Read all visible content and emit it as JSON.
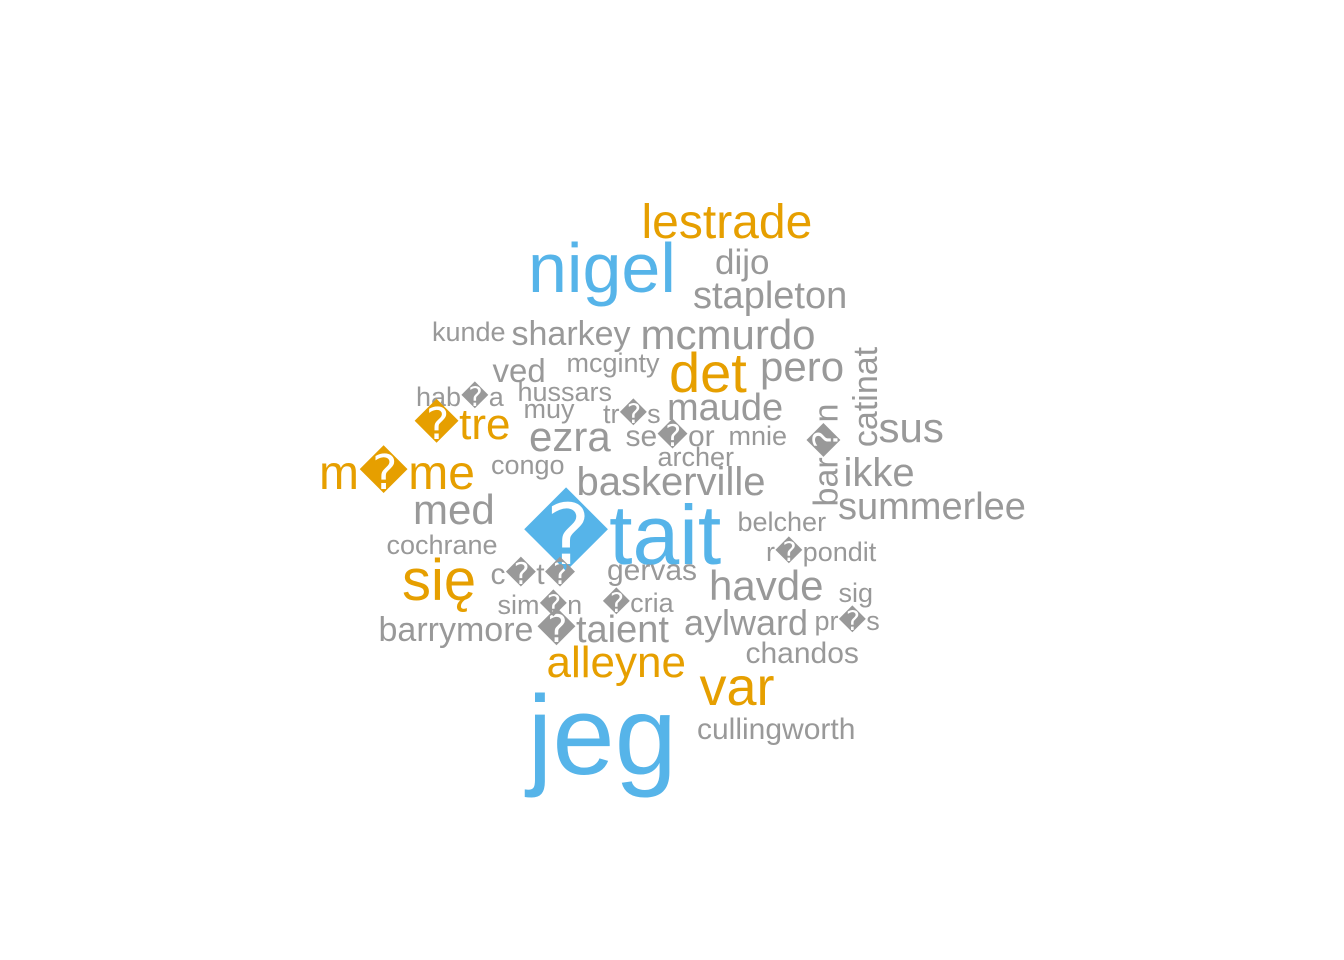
{
  "colors": {
    "blue": "#56B4E9",
    "orange": "#E69F00",
    "gray": "#999999"
  },
  "words": [
    {
      "id": "lestrade",
      "text": "lestrade",
      "color": "orange",
      "rotated": false
    },
    {
      "id": "nigel",
      "text": "nigel",
      "color": "blue",
      "rotated": false
    },
    {
      "id": "dijo",
      "text": "dijo",
      "color": "gray",
      "rotated": false
    },
    {
      "id": "stapleton",
      "text": "stapleton",
      "color": "gray",
      "rotated": false
    },
    {
      "id": "kunde",
      "text": "kunde",
      "color": "gray",
      "rotated": false
    },
    {
      "id": "sharkey",
      "text": "sharkey",
      "color": "gray",
      "rotated": false
    },
    {
      "id": "mcmurdo",
      "text": "mcmurdo",
      "color": "gray",
      "rotated": false
    },
    {
      "id": "ved",
      "text": "ved",
      "color": "gray",
      "rotated": false
    },
    {
      "id": "mcginty",
      "text": "mcginty",
      "color": "gray",
      "rotated": false
    },
    {
      "id": "det",
      "text": "det",
      "color": "orange",
      "rotated": false
    },
    {
      "id": "pero",
      "text": "pero",
      "color": "gray",
      "rotated": false
    },
    {
      "id": "catinat",
      "text": "catinat",
      "color": "gray",
      "rotated": true
    },
    {
      "id": "haba",
      "text": "hab�a",
      "color": "gray",
      "rotated": false
    },
    {
      "id": "hussars",
      "text": "hussars",
      "color": "gray",
      "rotated": false
    },
    {
      "id": "muy",
      "text": "muy",
      "color": "gray",
      "rotated": false
    },
    {
      "id": "tres",
      "text": "tr�s",
      "color": "gray",
      "rotated": false
    },
    {
      "id": "maude",
      "text": "maude",
      "color": "gray",
      "rotated": false
    },
    {
      "id": "baron",
      "text": "bar�n",
      "color": "gray",
      "rotated": true
    },
    {
      "id": "etre",
      "text": "�tre",
      "color": "orange",
      "rotated": false
    },
    {
      "id": "ezra",
      "text": "ezra",
      "color": "gray",
      "rotated": false
    },
    {
      "id": "senor",
      "text": "se�or",
      "color": "gray",
      "rotated": false
    },
    {
      "id": "mnie",
      "text": "mnie",
      "color": "gray",
      "rotated": false
    },
    {
      "id": "sus",
      "text": "sus",
      "color": "gray",
      "rotated": false
    },
    {
      "id": "meme",
      "text": "m�me",
      "color": "orange",
      "rotated": false
    },
    {
      "id": "congo",
      "text": "congo",
      "color": "gray",
      "rotated": false
    },
    {
      "id": "archer",
      "text": "archer",
      "color": "gray",
      "rotated": false
    },
    {
      "id": "baskerville",
      "text": "baskerville",
      "color": "gray",
      "rotated": false
    },
    {
      "id": "ikke",
      "text": "ikke",
      "color": "gray",
      "rotated": false
    },
    {
      "id": "med",
      "text": "med",
      "color": "gray",
      "rotated": false
    },
    {
      "id": "etait",
      "text": "�tait",
      "color": "blue",
      "rotated": false
    },
    {
      "id": "summerlee",
      "text": "summerlee",
      "color": "gray",
      "rotated": false
    },
    {
      "id": "belcher",
      "text": "belcher",
      "color": "gray",
      "rotated": false
    },
    {
      "id": "cochrane",
      "text": "cochrane",
      "color": "gray",
      "rotated": false
    },
    {
      "id": "repondit",
      "text": "r�pondit",
      "color": "gray",
      "rotated": false
    },
    {
      "id": "sie",
      "text": "się",
      "color": "orange",
      "rotated": false
    },
    {
      "id": "cote",
      "text": "c�t�",
      "color": "gray",
      "rotated": false
    },
    {
      "id": "gervas",
      "text": "gervas",
      "color": "gray",
      "rotated": false
    },
    {
      "id": "havde",
      "text": "havde",
      "color": "gray",
      "rotated": false
    },
    {
      "id": "sig",
      "text": "sig",
      "color": "gray",
      "rotated": false
    },
    {
      "id": "simon",
      "text": "sim�n",
      "color": "gray",
      "rotated": false
    },
    {
      "id": "ecria",
      "text": "�cria",
      "color": "gray",
      "rotated": false
    },
    {
      "id": "barrymore",
      "text": "barrymore",
      "color": "gray",
      "rotated": false
    },
    {
      "id": "etaient",
      "text": "�taient",
      "color": "gray",
      "rotated": false
    },
    {
      "id": "aylward",
      "text": "aylward",
      "color": "gray",
      "rotated": false
    },
    {
      "id": "pres",
      "text": "pr�s",
      "color": "gray",
      "rotated": false
    },
    {
      "id": "chandos",
      "text": "chandos",
      "color": "gray",
      "rotated": false
    },
    {
      "id": "alleyne",
      "text": "alleyne",
      "color": "orange",
      "rotated": false
    },
    {
      "id": "var",
      "text": "var",
      "color": "orange",
      "rotated": false
    },
    {
      "id": "jeg",
      "text": "jeg",
      "color": "blue",
      "rotated": false
    },
    {
      "id": "cullingworth",
      "text": "cullingworth",
      "color": "gray",
      "rotated": false
    }
  ]
}
